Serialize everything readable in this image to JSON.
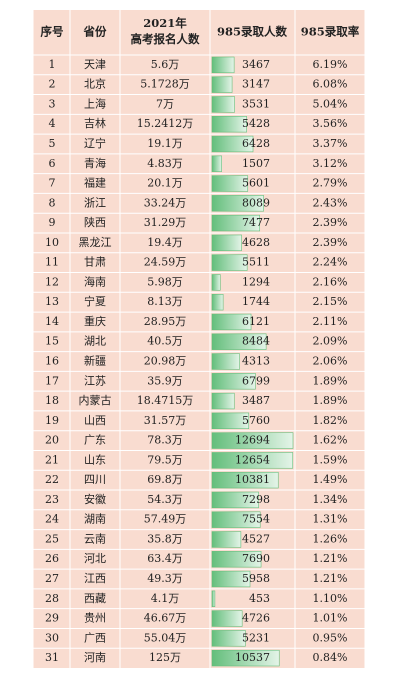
{
  "table": {
    "headers": [
      "序号",
      "省份",
      [
        "2021年",
        "高考报名人数"
      ],
      "985录取人数",
      "985录取率"
    ],
    "rows": [
      [
        1,
        "天津",
        "5.6万",
        3467,
        "6.19%"
      ],
      [
        2,
        "北京",
        "5.1728万",
        3147,
        "6.08%"
      ],
      [
        3,
        "上海",
        "7万",
        3531,
        "5.04%"
      ],
      [
        4,
        "吉林",
        "15.2412万",
        5428,
        "3.56%"
      ],
      [
        5,
        "辽宁",
        "19.1万",
        6428,
        "3.37%"
      ],
      [
        6,
        "青海",
        "4.83万",
        1507,
        "3.12%"
      ],
      [
        7,
        "福建",
        "20.1万",
        5601,
        "2.79%"
      ],
      [
        8,
        "浙江",
        "33.24万",
        8089,
        "2.43%"
      ],
      [
        9,
        "陕西",
        "31.29万",
        7477,
        "2.39%"
      ],
      [
        10,
        "黑龙江",
        "19.4万",
        4628,
        "2.39%"
      ],
      [
        11,
        "甘肃",
        "24.59万",
        5511,
        "2.24%"
      ],
      [
        12,
        "海南",
        "5.98万",
        1294,
        "2.16%"
      ],
      [
        13,
        "宁夏",
        "8.13万",
        1744,
        "2.15%"
      ],
      [
        14,
        "重庆",
        "28.95万",
        6121,
        "2.11%"
      ],
      [
        15,
        "湖北",
        "40.5万",
        8484,
        "2.09%"
      ],
      [
        16,
        "新疆",
        "20.98万",
        4313,
        "2.06%"
      ],
      [
        17,
        "江苏",
        "35.9万",
        6799,
        "1.89%"
      ],
      [
        18,
        "内蒙古",
        "18.4715万",
        3487,
        "1.89%"
      ],
      [
        19,
        "山西",
        "31.57万",
        5760,
        "1.82%"
      ],
      [
        20,
        "广东",
        "78.3万",
        12694,
        "1.62%"
      ],
      [
        21,
        "山东",
        "79.5万",
        12654,
        "1.59%"
      ],
      [
        22,
        "四川",
        "69.8万",
        10381,
        "1.49%"
      ],
      [
        23,
        "安徽",
        "54.3万",
        7298,
        "1.34%"
      ],
      [
        24,
        "湖南",
        "57.49万",
        7554,
        "1.31%"
      ],
      [
        25,
        "云南",
        "35.8万",
        4527,
        "1.26%"
      ],
      [
        26,
        "河北",
        "63.4万",
        7690,
        "1.21%"
      ],
      [
        27,
        "江西",
        "49.3万",
        5958,
        "1.21%"
      ],
      [
        28,
        "西藏",
        "4.1万",
        453,
        "1.10%"
      ],
      [
        29,
        "贵州",
        "46.67万",
        4726,
        "1.01%"
      ],
      [
        30,
        "广西",
        "55.04万",
        5231,
        "0.95%"
      ],
      [
        31,
        "河南",
        "125万",
        10537,
        "0.84%"
      ]
    ]
  }
}
